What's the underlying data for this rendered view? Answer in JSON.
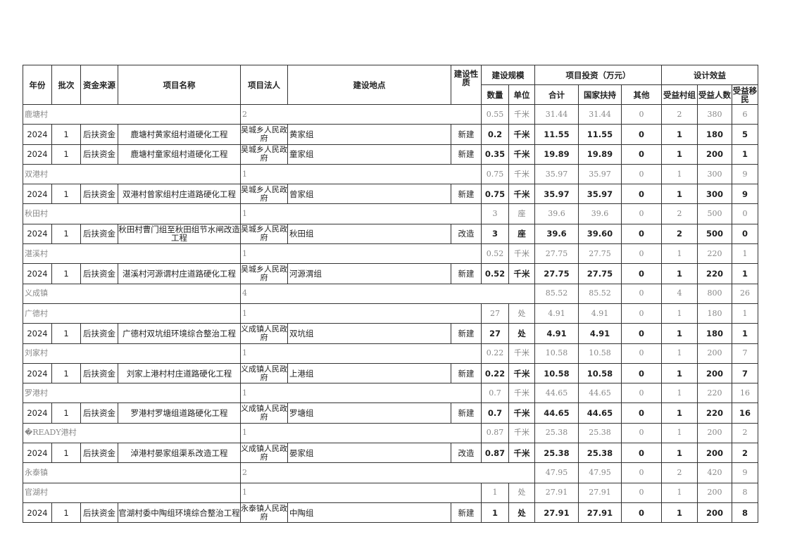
{
  "headers": {
    "year": "年份",
    "batch": "批次",
    "fund_source": "资金来源",
    "project_name": "项目名称",
    "legal_person": "项目法人",
    "location": "建设地点",
    "nature": "建设性质",
    "scale": "建设规模",
    "quantity": "数量",
    "unit": "单位",
    "investment": "项目投资（万元）",
    "total": "合计",
    "state_support": "国家扶持",
    "other": "其他",
    "benefit": "设计效益",
    "benefit_groups": "受益村组",
    "benefit_people": "受益人数",
    "benefit_migrants": "受益移民"
  },
  "rows": [
    {
      "type": "summary",
      "name": "鹿塘村",
      "count": "2",
      "qty": "0.55",
      "unit": "千米",
      "total": "31.44",
      "state": "31.44",
      "other": "0",
      "groups": "2",
      "people": "380",
      "migrants": "6"
    },
    {
      "type": "data",
      "year": "2024",
      "batch": "1",
      "fund": "后扶资金",
      "project": "鹿塘村黄家组村道硬化工程",
      "legal": "吴城乡人民政府",
      "location": "黄家组",
      "nature": "新建",
      "qty": "0.2",
      "unit": "千米",
      "total": "11.55",
      "state": "11.55",
      "other": "0",
      "groups": "1",
      "people": "180",
      "migrants": "5"
    },
    {
      "type": "data",
      "year": "2024",
      "batch": "1",
      "fund": "后扶资金",
      "project": "鹿塘村童家组村道硬化工程",
      "legal": "吴城乡人民政府",
      "location": "童家组",
      "nature": "新建",
      "qty": "0.35",
      "unit": "千米",
      "total": "19.89",
      "state": "19.89",
      "other": "0",
      "groups": "1",
      "people": "200",
      "migrants": "1"
    },
    {
      "type": "summary",
      "name": "双港村",
      "count": "1",
      "qty": "0.75",
      "unit": "千米",
      "total": "35.97",
      "state": "35.97",
      "other": "0",
      "groups": "1",
      "people": "300",
      "migrants": "9"
    },
    {
      "type": "data",
      "year": "2024",
      "batch": "1",
      "fund": "后扶资金",
      "project": "双港村曾家组村庄道路硬化工程",
      "legal": "吴城乡人民政府",
      "location": "曾家组",
      "nature": "新建",
      "qty": "0.75",
      "unit": "千米",
      "total": "35.97",
      "state": "35.97",
      "other": "0",
      "groups": "1",
      "people": "300",
      "migrants": "9"
    },
    {
      "type": "summary",
      "name": "秋田村",
      "count": "1",
      "qty": "3",
      "unit": "座",
      "total": "39.6",
      "state": "39.6",
      "other": "0",
      "groups": "2",
      "people": "500",
      "migrants": "0"
    },
    {
      "type": "data",
      "year": "2024",
      "batch": "1",
      "fund": "后扶资金",
      "project": "秋田村曹门组至秋田组节水闸改造工程",
      "legal": "吴城乡人民政府",
      "location": "秋田组",
      "nature": "改造",
      "qty": "3",
      "unit": "座",
      "total": "39.6",
      "state": "39.60",
      "other": "0",
      "groups": "2",
      "people": "500",
      "migrants": "0"
    },
    {
      "type": "summary",
      "name": "湛溪村",
      "count": "1",
      "qty": "0.52",
      "unit": "千米",
      "total": "27.75",
      "state": "27.75",
      "other": "0",
      "groups": "1",
      "people": "220",
      "migrants": "1"
    },
    {
      "type": "data",
      "year": "2024",
      "batch": "1",
      "fund": "后扶资金",
      "project": "湛溪村河源谓村庄道路硬化工程",
      "legal": "吴城乡人民政府",
      "location": "河源渭组",
      "nature": "新建",
      "qty": "0.52",
      "unit": "千米",
      "total": "27.75",
      "state": "27.75",
      "other": "0",
      "groups": "1",
      "people": "220",
      "migrants": "1"
    },
    {
      "type": "town",
      "name": "义成镇",
      "count": "4",
      "total": "85.52",
      "state": "85.52",
      "other": "0",
      "groups": "4",
      "people": "800",
      "migrants": "26"
    },
    {
      "type": "summary",
      "name": "广德村",
      "count": "1",
      "qty": "27",
      "unit": "处",
      "total": "4.91",
      "state": "4.91",
      "other": "0",
      "groups": "1",
      "people": "180",
      "migrants": "1"
    },
    {
      "type": "data",
      "year": "2024",
      "batch": "1",
      "fund": "后扶资金",
      "project": "广德村双坑组环境综合整治工程",
      "legal": "义成镇人民政府",
      "location": "双坑组",
      "nature": "新建",
      "qty": "27",
      "unit": "处",
      "total": "4.91",
      "state": "4.91",
      "other": "0",
      "groups": "1",
      "people": "180",
      "migrants": "1"
    },
    {
      "type": "summary",
      "name": "刘家村",
      "count": "1",
      "qty": "0.22",
      "unit": "千米",
      "total": "10.58",
      "state": "10.58",
      "other": "0",
      "groups": "1",
      "people": "200",
      "migrants": "7"
    },
    {
      "type": "data",
      "year": "2024",
      "batch": "1",
      "fund": "后扶资金",
      "project": "刘家上港村村庄道路硬化工程",
      "legal": "义成镇人民政府",
      "location": "上港组",
      "nature": "新建",
      "qty": "0.22",
      "unit": "千米",
      "total": "10.58",
      "state": "10.58",
      "other": "0",
      "groups": "1",
      "people": "200",
      "migrants": "7"
    },
    {
      "type": "summary",
      "name": "罗港村",
      "count": "1",
      "qty": "0.7",
      "unit": "千米",
      "total": "44.65",
      "state": "44.65",
      "other": "0",
      "groups": "1",
      "people": "220",
      "migrants": "16"
    },
    {
      "type": "data",
      "year": "2024",
      "batch": "1",
      "fund": "后扶资金",
      "project": "罗港村罗塘组道路硬化工程",
      "legal": "义成镇人民政府",
      "location": "罗塘组",
      "nature": "新建",
      "qty": "0.7",
      "unit": "千米",
      "total": "44.65",
      "state": "44.65",
      "other": "0",
      "groups": "1",
      "people": "220",
      "migrants": "16"
    },
    {
      "type": "summary",
      "name": "�READY港村",
      "count": "1",
      "qty": "0.87",
      "unit": "千米",
      "total": "25.38",
      "state": "25.38",
      "other": "0",
      "groups": "1",
      "people": "200",
      "migrants": "2"
    },
    {
      "type": "data",
      "year": "2024",
      "batch": "1",
      "fund": "后扶资金",
      "project": "淖港村晏家组渠系改造工程",
      "legal": "义成镇人民政府",
      "location": "晏家组",
      "nature": "改造",
      "qty": "0.87",
      "unit": "千米",
      "total": "25.38",
      "state": "25.38",
      "other": "0",
      "groups": "1",
      "people": "200",
      "migrants": "2"
    },
    {
      "type": "town",
      "name": "永泰镇",
      "count": "2",
      "total": "47.95",
      "state": "47.95",
      "other": "0",
      "groups": "2",
      "people": "420",
      "migrants": "9"
    },
    {
      "type": "summary",
      "name": "官湖村",
      "count": "1",
      "qty": "1",
      "unit": "处",
      "total": "27.91",
      "state": "27.91",
      "other": "0",
      "groups": "1",
      "people": "200",
      "migrants": "8"
    },
    {
      "type": "data",
      "year": "2024",
      "batch": "1",
      "fund": "后扶资金",
      "project": "官湖村委中陶组环境综合整治工程",
      "legal": "永泰镇人民政府",
      "location": "中陶组",
      "nature": "新建",
      "qty": "1",
      "unit": "处",
      "total": "27.91",
      "state": "27.91",
      "other": "0",
      "groups": "1",
      "people": "200",
      "migrants": "8"
    }
  ]
}
